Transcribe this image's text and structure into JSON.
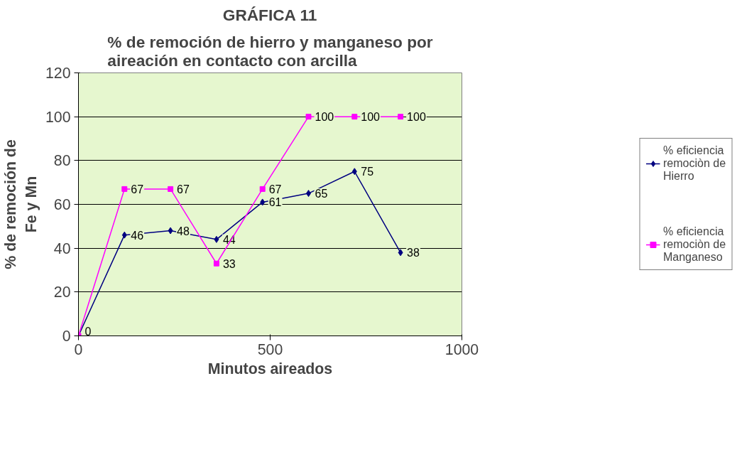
{
  "chart_data": {
    "type": "line",
    "title": "GRÁFICA 11",
    "subtitle": "% de remoción de hierro y manganeso por aireación en contacto con arcilla",
    "xlabel": "Minutos aireados",
    "ylabel": "% de remoción de Fe y Mn",
    "x": [
      0,
      120,
      240,
      360,
      480,
      600,
      720,
      840
    ],
    "series": [
      {
        "name": "% eficiencia remociòn de Hierro",
        "color": "#000080",
        "marker": "diamond",
        "values": [
          0,
          46,
          48,
          44,
          61,
          65,
          75,
          38
        ],
        "value_labels": [
          "0",
          "46",
          "48",
          "44",
          "61",
          "65",
          "75",
          "38"
        ]
      },
      {
        "name": "% eficiencia remociòn de Manganeso",
        "color": "#ff00ff",
        "marker": "square",
        "values": [
          0,
          67,
          67,
          33,
          67,
          100,
          100,
          100
        ],
        "value_labels": [
          null,
          "67",
          "67",
          "33",
          "67",
          "100",
          "100",
          "100"
        ]
      }
    ],
    "xlim": [
      0,
      1000
    ],
    "xticks": [
      0,
      500,
      1000
    ],
    "ylim": [
      0,
      120
    ],
    "yticks": [
      0,
      20,
      40,
      60,
      80,
      100,
      120
    ],
    "grid": "y",
    "legend": "right"
  }
}
